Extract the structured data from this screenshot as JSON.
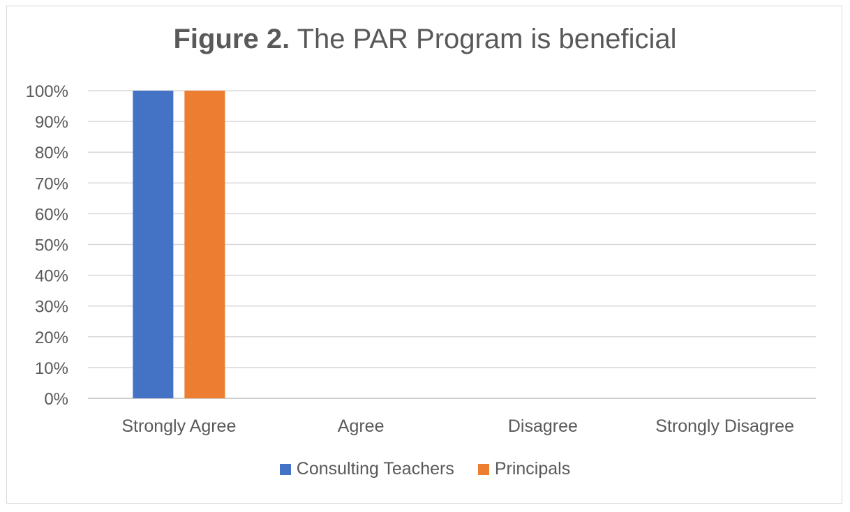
{
  "chart_data": {
    "type": "bar",
    "title_prefix": "Figure 2.",
    "title_text": " The PAR Program is beneficial",
    "categories": [
      "Strongly Agree",
      "Agree",
      "Disagree",
      "Strongly Disagree"
    ],
    "series": [
      {
        "name": "Consulting Teachers",
        "color": "#4472c4",
        "values": [
          100,
          0,
          0,
          0
        ]
      },
      {
        "name": "Principals",
        "color": "#ed7d31",
        "values": [
          100,
          0,
          0,
          0
        ]
      }
    ],
    "ylim": [
      0,
      100
    ],
    "yticks": [
      0,
      10,
      20,
      30,
      40,
      50,
      60,
      70,
      80,
      90,
      100
    ],
    "y_unit": "%",
    "grid": true,
    "legend_position": "bottom"
  }
}
